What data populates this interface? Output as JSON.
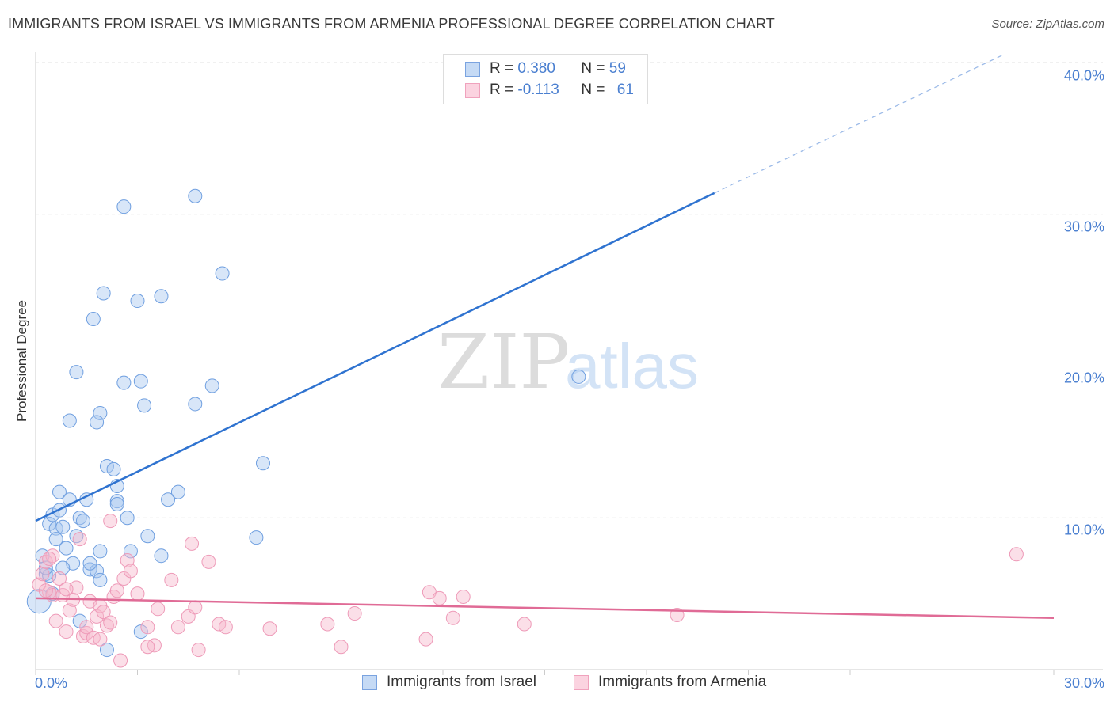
{
  "title": "IMMIGRANTS FROM ISRAEL VS IMMIGRANTS FROM ARMENIA PROFESSIONAL DEGREE CORRELATION CHART",
  "source": "Source: ZipAtlas.com",
  "watermark": {
    "zip": "ZIP",
    "atlas": "atlas"
  },
  "colors": {
    "israel_fill": "#a9c8f0",
    "israel_line": "#2f73d0",
    "armenia_fill": "#f7b9cd",
    "armenia_line": "#e06b96",
    "tick_text": "#4a7fd0"
  },
  "legend": {
    "israel": {
      "r_label": "R = ",
      "r_value": "0.380",
      "n_label": "N = ",
      "n_value": "59"
    },
    "armenia": {
      "r_label": "R = ",
      "r_value": "-0.113",
      "n_label": "N = ",
      "n_value": "61"
    }
  },
  "chart_data": {
    "type": "scatter",
    "title": "IMMIGRANTS FROM ISRAEL VS IMMIGRANTS FROM ARMENIA PROFESSIONAL DEGREE CORRELATION CHART",
    "xlabel": "",
    "ylabel": "Professional Degree",
    "xlim": [
      0,
      30
    ],
    "ylim": [
      0,
      40
    ],
    "x_tick_labels": [
      "0.0%",
      "30.0%"
    ],
    "y_tick_labels": [
      "10.0%",
      "20.0%",
      "30.0%",
      "40.0%"
    ],
    "y_ticks": [
      10,
      20,
      30,
      40
    ],
    "series": [
      {
        "name": "Immigrants from Israel",
        "color": "#a9c8f0",
        "trend": {
          "x0": 0,
          "y0": 9.8,
          "x1": 20,
          "y1": 31.4,
          "dash_to_x": 28.5,
          "dash_to_y": 40.5
        },
        "points": [
          [
            0.1,
            4.5
          ],
          [
            0.3,
            6.3
          ],
          [
            0.2,
            7.5
          ],
          [
            0.4,
            9.6
          ],
          [
            0.5,
            10.2
          ],
          [
            0.6,
            9.3
          ],
          [
            0.7,
            10.5
          ],
          [
            0.7,
            11.7
          ],
          [
            0.8,
            9.4
          ],
          [
            0.9,
            8.0
          ],
          [
            1.0,
            11.2
          ],
          [
            1.1,
            7.0
          ],
          [
            1.2,
            8.8
          ],
          [
            1.3,
            10.0
          ],
          [
            1.4,
            9.8
          ],
          [
            1.5,
            11.2
          ],
          [
            1.6,
            6.6
          ],
          [
            1.8,
            6.5
          ],
          [
            1.9,
            5.9
          ],
          [
            2.1,
            13.4
          ],
          [
            2.3,
            13.2
          ],
          [
            2.4,
            11.1
          ],
          [
            2.4,
            10.9
          ],
          [
            2.4,
            12.1
          ],
          [
            2.7,
            10.0
          ],
          [
            2.8,
            7.8
          ],
          [
            3.1,
            2.5
          ],
          [
            3.3,
            8.8
          ],
          [
            3.7,
            7.5
          ],
          [
            3.9,
            11.2
          ],
          [
            4.2,
            11.7
          ],
          [
            4.7,
            17.5
          ],
          [
            5.2,
            18.7
          ],
          [
            5.5,
            26.1
          ],
          [
            4.7,
            31.2
          ],
          [
            3.7,
            24.6
          ],
          [
            3.0,
            24.3
          ],
          [
            2.0,
            24.8
          ],
          [
            1.7,
            23.1
          ],
          [
            1.2,
            19.6
          ],
          [
            2.6,
            18.9
          ],
          [
            3.1,
            19.0
          ],
          [
            3.2,
            17.4
          ],
          [
            1.9,
            16.9
          ],
          [
            1.0,
            16.4
          ],
          [
            1.8,
            16.3
          ],
          [
            2.6,
            30.5
          ],
          [
            6.7,
            13.6
          ],
          [
            6.5,
            8.7
          ],
          [
            16.0,
            19.3
          ],
          [
            0.4,
            6.2
          ],
          [
            0.6,
            8.6
          ],
          [
            0.8,
            6.7
          ],
          [
            1.3,
            3.2
          ],
          [
            1.6,
            7.0
          ],
          [
            2.1,
            1.3
          ],
          [
            0.3,
            6.7
          ],
          [
            0.5,
            5.0
          ],
          [
            1.9,
            7.8
          ]
        ]
      },
      {
        "name": "Immigrants from Armenia",
        "color": "#f7b9cd",
        "trend": {
          "x0": 0,
          "y0": 4.7,
          "x1": 30,
          "y1": 3.4
        },
        "points": [
          [
            0.1,
            5.6
          ],
          [
            0.2,
            6.3
          ],
          [
            0.3,
            7.1
          ],
          [
            0.4,
            5.1
          ],
          [
            0.5,
            7.5
          ],
          [
            0.5,
            4.9
          ],
          [
            0.6,
            3.2
          ],
          [
            0.7,
            6.0
          ],
          [
            0.8,
            4.9
          ],
          [
            0.9,
            2.5
          ],
          [
            1.0,
            3.9
          ],
          [
            1.1,
            4.6
          ],
          [
            1.2,
            5.4
          ],
          [
            1.3,
            8.6
          ],
          [
            1.4,
            2.2
          ],
          [
            1.5,
            2.4
          ],
          [
            1.6,
            4.5
          ],
          [
            1.7,
            2.1
          ],
          [
            1.8,
            3.5
          ],
          [
            1.9,
            4.2
          ],
          [
            2.0,
            3.8
          ],
          [
            2.1,
            2.9
          ],
          [
            2.2,
            3.1
          ],
          [
            2.3,
            4.8
          ],
          [
            2.4,
            5.2
          ],
          [
            2.5,
            0.6
          ],
          [
            2.6,
            6.0
          ],
          [
            2.7,
            7.2
          ],
          [
            2.8,
            6.5
          ],
          [
            3.0,
            5.0
          ],
          [
            3.3,
            2.8
          ],
          [
            3.5,
            1.6
          ],
          [
            3.6,
            4.0
          ],
          [
            4.0,
            5.9
          ],
          [
            4.2,
            2.8
          ],
          [
            4.5,
            3.5
          ],
          [
            4.6,
            8.3
          ],
          [
            4.7,
            4.1
          ],
          [
            4.8,
            1.3
          ],
          [
            5.1,
            7.1
          ],
          [
            5.4,
            3.0
          ],
          [
            5.6,
            2.8
          ],
          [
            6.9,
            2.7
          ],
          [
            8.6,
            3.0
          ],
          [
            9.0,
            1.5
          ],
          [
            9.4,
            3.7
          ],
          [
            11.5,
            2.0
          ],
          [
            11.6,
            5.1
          ],
          [
            11.9,
            4.7
          ],
          [
            12.3,
            3.4
          ],
          [
            12.6,
            4.8
          ],
          [
            14.4,
            3.0
          ],
          [
            18.9,
            3.6
          ],
          [
            28.9,
            7.6
          ],
          [
            0.3,
            5.2
          ],
          [
            0.4,
            7.3
          ],
          [
            1.5,
            2.8
          ],
          [
            1.9,
            2.0
          ],
          [
            0.9,
            5.3
          ],
          [
            2.2,
            9.8
          ],
          [
            3.3,
            1.5
          ]
        ]
      }
    ]
  }
}
